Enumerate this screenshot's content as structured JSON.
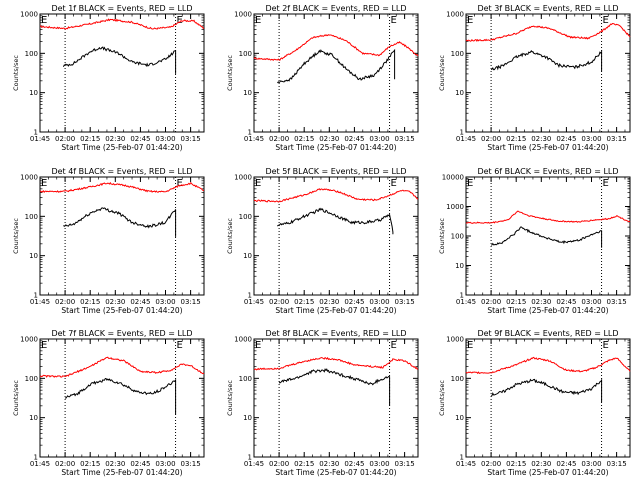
{
  "x_tick_labels": [
    "01:45",
    "02:00",
    "02:15",
    "02:30",
    "02:45",
    "03:00",
    "03:15"
  ],
  "x_axis_label": "Start Time (25-Feb-07 01:44:20)",
  "y_axis_label": "Counts/sec",
  "marker_label": "E",
  "colors": {
    "events": "#000000",
    "lld": "#ff0000",
    "axes": "#000000"
  },
  "chart_data": [
    {
      "type": "line",
      "title": "Det 1f BLACK = Events, RED = LLD",
      "xlabel": "Start Time (25-Feb-07 01:44:20)",
      "ylabel": "Counts/sec",
      "y_scale": "log",
      "xlim": [
        "01:45",
        "03:23"
      ],
      "ylim": [
        1,
        1000
      ],
      "y_tick_labels": [
        "1",
        "10",
        "100",
        "1000"
      ],
      "vertical_marker_times": [
        "02:00",
        "03:06"
      ],
      "series": [
        {
          "color": "red",
          "points": [
            [
              "01:45",
              480
            ],
            [
              "02:00",
              430
            ],
            [
              "02:15",
              560
            ],
            [
              "02:27",
              720
            ],
            [
              "02:40",
              620
            ],
            [
              "02:52",
              420
            ],
            [
              "03:03",
              460
            ],
            [
              "03:10",
              680
            ],
            [
              "03:17",
              660
            ],
            [
              "03:23",
              430
            ]
          ]
        },
        {
          "color": "black",
          "end_drop_to": 30,
          "points": [
            [
              "01:59",
              48
            ],
            [
              "02:05",
              55
            ],
            [
              "02:15",
              110
            ],
            [
              "02:21",
              140
            ],
            [
              "02:32",
              100
            ],
            [
              "02:40",
              60
            ],
            [
              "02:50",
              50
            ],
            [
              "03:00",
              70
            ],
            [
              "03:06",
              115
            ]
          ]
        }
      ]
    },
    {
      "type": "line",
      "title": "Det 2f BLACK = Events, RED = LLD",
      "xlabel": "Start Time (25-Feb-07 01:44:20)",
      "ylabel": "Counts/sec",
      "y_scale": "log",
      "xlim": [
        "01:45",
        "03:23"
      ],
      "ylim": [
        1,
        1000
      ],
      "y_tick_labels": [
        "1",
        "10",
        "100",
        "1000"
      ],
      "vertical_marker_times": [
        "02:00",
        "03:06"
      ],
      "series": [
        {
          "color": "red",
          "points": [
            [
              "01:45",
              75
            ],
            [
              "02:00",
              68
            ],
            [
              "02:10",
              120
            ],
            [
              "02:20",
              250
            ],
            [
              "02:30",
              300
            ],
            [
              "02:40",
              210
            ],
            [
              "02:50",
              100
            ],
            [
              "03:00",
              90
            ],
            [
              "03:06",
              150
            ],
            [
              "03:12",
              190
            ],
            [
              "03:17",
              140
            ],
            [
              "03:23",
              85
            ]
          ]
        },
        {
          "color": "black",
          "end_drop_to": 22,
          "points": [
            [
              "01:59",
              18
            ],
            [
              "02:07",
              22
            ],
            [
              "02:15",
              55
            ],
            [
              "02:24",
              115
            ],
            [
              "02:32",
              90
            ],
            [
              "02:40",
              40
            ],
            [
              "02:48",
              22
            ],
            [
              "02:57",
              28
            ],
            [
              "03:05",
              70
            ],
            [
              "03:09",
              120
            ]
          ]
        }
      ]
    },
    {
      "type": "line",
      "title": "Det 3f BLACK = Events, RED = LLD",
      "xlabel": "Start Time (25-Feb-07 01:44:20)",
      "ylabel": "Counts/sec",
      "y_scale": "log",
      "xlim": [
        "01:45",
        "03:23"
      ],
      "ylim": [
        1,
        1000
      ],
      "y_tick_labels": [
        "1",
        "10",
        "100",
        "1000"
      ],
      "vertical_marker_times": [
        "02:00",
        "03:06"
      ],
      "series": [
        {
          "color": "red",
          "points": [
            [
              "01:45",
              210
            ],
            [
              "02:00",
              220
            ],
            [
              "02:15",
              320
            ],
            [
              "02:25",
              500
            ],
            [
              "02:35",
              430
            ],
            [
              "02:47",
              260
            ],
            [
              "02:58",
              240
            ],
            [
              "03:06",
              360
            ],
            [
              "03:12",
              560
            ],
            [
              "03:17",
              500
            ],
            [
              "03:23",
              260
            ]
          ]
        },
        {
          "color": "black",
          "end_drop_to": 35,
          "points": [
            [
              "02:00",
              38
            ],
            [
              "02:07",
              48
            ],
            [
              "02:15",
              80
            ],
            [
              "02:24",
              110
            ],
            [
              "02:33",
              80
            ],
            [
              "02:40",
              50
            ],
            [
              "02:50",
              44
            ],
            [
              "03:00",
              60
            ],
            [
              "03:06",
              110
            ]
          ]
        }
      ]
    },
    {
      "type": "line",
      "title": "Det 4f BLACK = Events, RED = LLD",
      "xlabel": "Start Time (25-Feb-07 01:44:20)",
      "ylabel": "Counts/sec",
      "y_scale": "log",
      "xlim": [
        "01:45",
        "03:23"
      ],
      "ylim": [
        1,
        1000
      ],
      "y_tick_labels": [
        "1",
        "10",
        "100",
        "1000"
      ],
      "vertical_marker_times": [
        "02:00",
        "03:06"
      ],
      "series": [
        {
          "color": "red",
          "points": [
            [
              "01:45",
              430
            ],
            [
              "02:00",
              430
            ],
            [
              "02:15",
              560
            ],
            [
              "02:25",
              700
            ],
            [
              "02:37",
              600
            ],
            [
              "02:50",
              430
            ],
            [
              "03:00",
              420
            ],
            [
              "03:08",
              600
            ],
            [
              "03:15",
              690
            ],
            [
              "03:23",
              450
            ]
          ]
        },
        {
          "color": "black",
          "end_drop_to": 30,
          "points": [
            [
              "01:59",
              55
            ],
            [
              "02:05",
              62
            ],
            [
              "02:15",
              120
            ],
            [
              "02:22",
              160
            ],
            [
              "02:32",
              120
            ],
            [
              "02:40",
              70
            ],
            [
              "02:50",
              55
            ],
            [
              "03:00",
              70
            ],
            [
              "03:06",
              150
            ]
          ]
        }
      ]
    },
    {
      "type": "line",
      "title": "Det 5f BLACK = Events, RED = LLD",
      "xlabel": "Start Time (25-Feb-07 01:44:20)",
      "ylabel": "Counts/sec",
      "y_scale": "log",
      "xlim": [
        "01:45",
        "03:23"
      ],
      "ylim": [
        1,
        1000
      ],
      "y_tick_labels": [
        "1",
        "10",
        "100",
        "1000"
      ],
      "vertical_marker_times": [
        "02:00",
        "03:06"
      ],
      "series": [
        {
          "color": "red",
          "points": [
            [
              "01:45",
              250
            ],
            [
              "02:00",
              240
            ],
            [
              "02:15",
              350
            ],
            [
              "02:25",
              500
            ],
            [
              "02:35",
              430
            ],
            [
              "02:47",
              270
            ],
            [
              "02:58",
              260
            ],
            [
              "03:05",
              330
            ],
            [
              "03:13",
              450
            ],
            [
              "03:18",
              420
            ],
            [
              "03:23",
              280
            ]
          ]
        },
        {
          "color": "black",
          "end_drop_to": 35,
          "points": [
            [
              "01:59",
              60
            ],
            [
              "02:05",
              65
            ],
            [
              "02:15",
              100
            ],
            [
              "02:25",
              150
            ],
            [
              "02:33",
              110
            ],
            [
              "02:43",
              70
            ],
            [
              "02:52",
              70
            ],
            [
              "03:00",
              80
            ],
            [
              "03:06",
              110
            ],
            [
              "03:08",
              40
            ]
          ]
        }
      ]
    },
    {
      "type": "line",
      "title": "Det 6f BLACK = Events, RED = LLD",
      "xlabel": "Start Time (25-Feb-07 01:44:20)",
      "ylabel": "Counts/sec",
      "y_scale": "log",
      "xlim": [
        "01:45",
        "03:23"
      ],
      "ylim": [
        1,
        10000
      ],
      "y_tick_labels": [
        "1",
        "10",
        "100",
        "1000",
        "10000"
      ],
      "vertical_marker_times": [
        "02:00",
        "03:06"
      ],
      "series": [
        {
          "color": "red",
          "points": [
            [
              "01:45",
              280
            ],
            [
              "02:00",
              280
            ],
            [
              "02:10",
              350
            ],
            [
              "02:16",
              700
            ],
            [
              "02:22",
              500
            ],
            [
              "02:30",
              400
            ],
            [
              "02:40",
              320
            ],
            [
              "02:52",
              300
            ],
            [
              "03:02",
              350
            ],
            [
              "03:10",
              380
            ],
            [
              "03:15",
              480
            ],
            [
              "03:23",
              300
            ]
          ]
        },
        {
          "color": "black",
          "end_drop_to": 40,
          "points": [
            [
              "02:00",
              50
            ],
            [
              "02:07",
              60
            ],
            [
              "02:14",
              120
            ],
            [
              "02:18",
              200
            ],
            [
              "02:22",
              150
            ],
            [
              "02:32",
              90
            ],
            [
              "02:42",
              60
            ],
            [
              "02:52",
              70
            ],
            [
              "03:00",
              110
            ],
            [
              "03:06",
              150
            ]
          ]
        }
      ]
    },
    {
      "type": "line",
      "title": "Det 7f BLACK = Events, RED = LLD",
      "xlabel": "Start Time (25-Feb-07 01:44:20)",
      "ylabel": "Counts/sec",
      "y_scale": "log",
      "xlim": [
        "01:45",
        "03:23"
      ],
      "ylim": [
        1,
        1000
      ],
      "y_tick_labels": [
        "1",
        "10",
        "100",
        "1000"
      ],
      "vertical_marker_times": [
        "02:00",
        "03:06"
      ],
      "series": [
        {
          "color": "red",
          "points": [
            [
              "01:45",
              115
            ],
            [
              "02:00",
              110
            ],
            [
              "02:15",
              200
            ],
            [
              "02:25",
              340
            ],
            [
              "02:35",
              280
            ],
            [
              "02:45",
              150
            ],
            [
              "02:55",
              140
            ],
            [
              "03:03",
              160
            ],
            [
              "03:10",
              230
            ],
            [
              "03:15",
              210
            ],
            [
              "03:23",
              130
            ]
          ]
        },
        {
          "color": "black",
          "end_drop_to": 12,
          "points": [
            [
              "02:00",
              32
            ],
            [
              "02:07",
              40
            ],
            [
              "02:15",
              70
            ],
            [
              "02:25",
              95
            ],
            [
              "02:33",
              75
            ],
            [
              "02:43",
              45
            ],
            [
              "02:52",
              40
            ],
            [
              "03:00",
              60
            ],
            [
              "03:06",
              90
            ]
          ]
        }
      ]
    },
    {
      "type": "line",
      "title": "Det 8f BLACK = Events, RED = LLD",
      "xlabel": "Start Time (25-Feb-07 01:44:20)",
      "ylabel": "Counts/sec",
      "y_scale": "log",
      "xlim": [
        "01:45",
        "03:23"
      ],
      "ylim": [
        1,
        1000
      ],
      "y_tick_labels": [
        "1",
        "10",
        "100",
        "1000"
      ],
      "vertical_marker_times": [
        "02:00",
        "03:06"
      ],
      "series": [
        {
          "color": "red",
          "points": [
            [
              "01:45",
              170
            ],
            [
              "02:00",
              180
            ],
            [
              "02:15",
              270
            ],
            [
              "02:25",
              330
            ],
            [
              "02:35",
              300
            ],
            [
              "02:45",
              220
            ],
            [
              "02:55",
              200
            ],
            [
              "03:02",
              190
            ],
            [
              "03:08",
              300
            ],
            [
              "03:15",
              280
            ],
            [
              "03:23",
              170
            ]
          ]
        },
        {
          "color": "black",
          "end_drop_to": 20,
          "points": [
            [
              "02:00",
              80
            ],
            [
              "02:10",
              100
            ],
            [
              "02:20",
              150
            ],
            [
              "02:28",
              160
            ],
            [
              "02:38",
              120
            ],
            [
              "02:48",
              90
            ],
            [
              "02:55",
              70
            ],
            [
              "03:00",
              90
            ],
            [
              "03:06",
              110
            ]
          ]
        }
      ]
    },
    {
      "type": "line",
      "title": "Det 9f BLACK = Events, RED = LLD",
      "xlabel": "Start Time (25-Feb-07 01:44:20)",
      "ylabel": "Counts/sec",
      "y_scale": "log",
      "xlim": [
        "01:45",
        "03:23"
      ],
      "ylim": [
        1,
        1000
      ],
      "y_tick_labels": [
        "1",
        "10",
        "100",
        "1000"
      ],
      "vertical_marker_times": [
        "02:00",
        "03:06"
      ],
      "series": [
        {
          "color": "red",
          "points": [
            [
              "01:45",
              140
            ],
            [
              "02:00",
              140
            ],
            [
              "02:15",
              220
            ],
            [
              "02:25",
              330
            ],
            [
              "02:35",
              280
            ],
            [
              "02:45",
              160
            ],
            [
              "02:55",
              150
            ],
            [
              "03:03",
              190
            ],
            [
              "03:10",
              280
            ],
            [
              "03:15",
              330
            ],
            [
              "03:23",
              150
            ]
          ]
        },
        {
          "color": "black",
          "end_drop_to": 25,
          "points": [
            [
              "02:00",
              38
            ],
            [
              "02:07",
              45
            ],
            [
              "02:15",
              70
            ],
            [
              "02:25",
              90
            ],
            [
              "02:33",
              70
            ],
            [
              "02:43",
              45
            ],
            [
              "02:52",
              42
            ],
            [
              "03:00",
              55
            ],
            [
              "03:06",
              90
            ]
          ]
        }
      ]
    }
  ]
}
